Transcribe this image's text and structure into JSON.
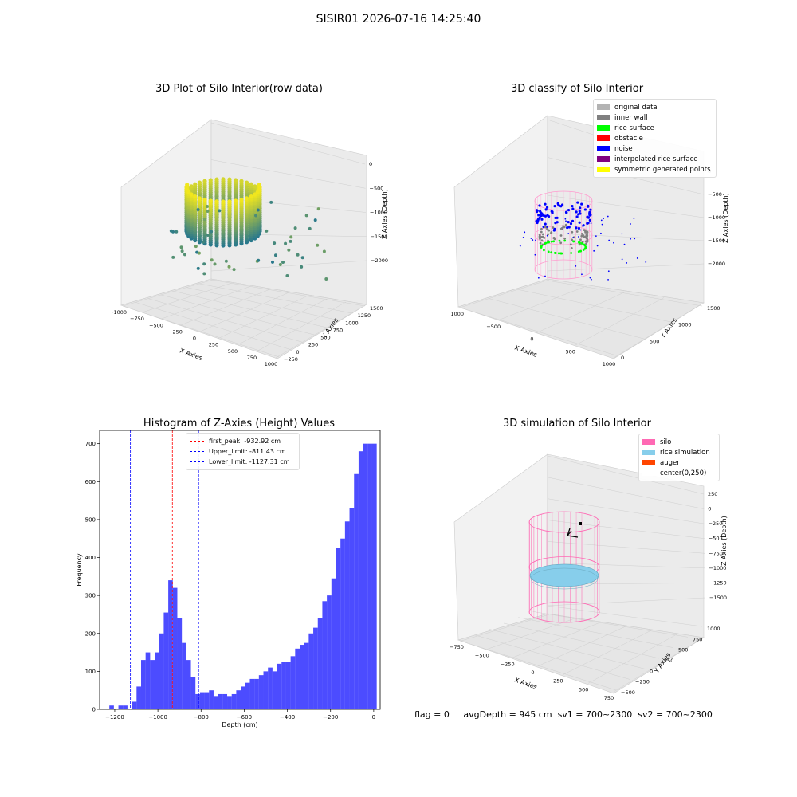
{
  "figure_title": "SISIR01 2026-07-16 14:25:40",
  "panels": {
    "raw": {
      "title": "3D Plot of Silo Interior(row data)",
      "xlabel": "X Axies",
      "ylabel": "Y Axies",
      "zlabel": "Z Axies (Depth)",
      "xticks": [
        "−1000",
        "−750",
        "−500",
        "−250",
        "0",
        "250",
        "500",
        "750",
        "1000"
      ],
      "yticks": [
        "−250",
        "0",
        "250",
        "500",
        "750",
        "1000",
        "1250",
        "1500"
      ],
      "zticks": [
        "0",
        "−500",
        "−1000",
        "−1500",
        "−2000"
      ]
    },
    "classify": {
      "title": "3D classify of Silo Interior",
      "xlabel": "X Axies",
      "ylabel": "Y Axies",
      "zlabel": "Z Axies (Depth)",
      "xticks": [
        "−1000",
        "−500",
        "0",
        "500",
        "1000"
      ],
      "yticks": [
        "0",
        "500",
        "1000",
        "1500"
      ],
      "zticks": [
        "0",
        "−500",
        "−1000",
        "−1500",
        "−2000"
      ],
      "legend": [
        {
          "label": "original data",
          "color": "#b3b3b3"
        },
        {
          "label": "inner wall",
          "color": "#808080"
        },
        {
          "label": "rice surface",
          "color": "#00ff00"
        },
        {
          "label": "obstacle",
          "color": "#ff0000"
        },
        {
          "label": "noise",
          "color": "#0000ff"
        },
        {
          "label": "interpolated rice surface",
          "color": "#800080"
        },
        {
          "label": "symmetric generated points",
          "color": "#ffff00"
        }
      ]
    },
    "simulation": {
      "title": "3D simulation of Silo Interior",
      "xlabel": "X Axies",
      "ylabel": "Y Axies",
      "zlabel": "Z Axies (Depth)",
      "xticks": [
        "−750",
        "−500",
        "−250",
        "0",
        "250",
        "500",
        "750"
      ],
      "yticks": [
        "−500",
        "−250",
        "0",
        "250",
        "500",
        "750",
        "1000"
      ],
      "zticks": [
        "250",
        "0",
        "−250",
        "−500",
        "−750",
        "−1000",
        "−1250",
        "−1500"
      ],
      "legend": [
        {
          "label": "silo",
          "color": "#ff69b4"
        },
        {
          "label": "rice simulation",
          "color": "#87ceeb"
        },
        {
          "label": "auger",
          "color": "#ff4500"
        },
        {
          "label": "center(0,250)",
          "color": "#ffffff"
        }
      ]
    }
  },
  "chart_data": {
    "type": "bar",
    "title": "Histogram of Z-Axies (Height) Values",
    "xlabel": "Depth (cm)",
    "ylabel": "Frequency",
    "xlim": [
      -1270,
      30
    ],
    "ylim": [
      0,
      735
    ],
    "xticks": [
      -1200,
      -1000,
      -800,
      -600,
      -400,
      -200,
      0
    ],
    "yticks": [
      0,
      100,
      200,
      300,
      400,
      500,
      600,
      700
    ],
    "bar_color": "#0000ff",
    "bin_width": 21,
    "bin_starts": [
      -1225,
      -1204,
      -1183,
      -1162,
      -1141,
      -1120,
      -1099,
      -1078,
      -1057,
      -1036,
      -1015,
      -994,
      -973,
      -952,
      -931,
      -910,
      -889,
      -868,
      -847,
      -826,
      -805,
      -784,
      -763,
      -742,
      -721,
      -700,
      -679,
      -658,
      -637,
      -616,
      -595,
      -574,
      -553,
      -532,
      -511,
      -490,
      -469,
      -448,
      -427,
      -406,
      -385,
      -364,
      -343,
      -322,
      -301,
      -280,
      -259,
      -238,
      -217,
      -196,
      -175,
      -154,
      -133,
      -112,
      -91,
      -70,
      -49,
      -28,
      -7
    ],
    "values": [
      10,
      0,
      10,
      10,
      0,
      20,
      60,
      130,
      150,
      130,
      150,
      200,
      255,
      340,
      320,
      240,
      175,
      130,
      85,
      40,
      45,
      45,
      50,
      35,
      40,
      40,
      35,
      40,
      50,
      60,
      70,
      80,
      80,
      90,
      100,
      110,
      100,
      120,
      125,
      125,
      140,
      160,
      170,
      175,
      200,
      215,
      240,
      285,
      300,
      345,
      425,
      450,
      495,
      530,
      620,
      680,
      700,
      700,
      700
    ],
    "vlines": [
      {
        "label": "first_peak: -932.92 cm",
        "x": -932.92,
        "color": "#ff0000"
      },
      {
        "label": "Upper_limit: -811.43 cm",
        "x": -811.43,
        "color": "#0000ff"
      },
      {
        "label": "Lower_limit: -1127.31 cm",
        "x": -1127.31,
        "color": "#0000ff"
      }
    ]
  },
  "status": {
    "flag": "flag = 0",
    "avg_depth": "avgDepth = 945 cm",
    "sv1": "sv1 = 700~2300",
    "sv2": "sv2 = 700~2300"
  }
}
